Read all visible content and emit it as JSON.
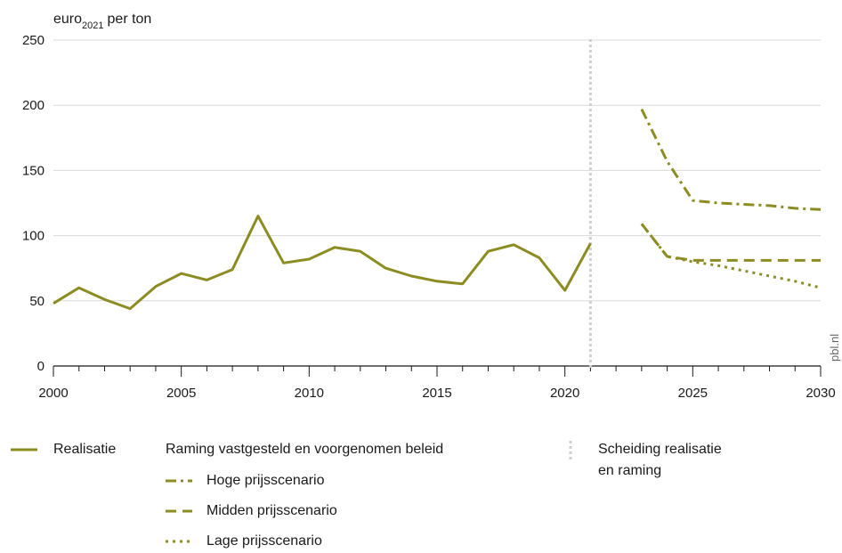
{
  "colors": {
    "series": "#8c8c22",
    "grid": "#d9d9d9",
    "axis": "#1a1a1a",
    "divider": "#cfcfcf"
  },
  "chart_data": {
    "type": "line",
    "ylabel": {
      "main": "euro",
      "sub": "2021",
      "suffix": "per ton"
    },
    "xlim": [
      2000,
      2030
    ],
    "ylim": [
      0,
      250
    ],
    "xticks": [
      2000,
      2005,
      2010,
      2015,
      2020,
      2025,
      2030
    ],
    "yticks": [
      0,
      50,
      100,
      150,
      200,
      250
    ],
    "grid": true,
    "divider_x": 2021,
    "series": [
      {
        "name": "Realisatie",
        "style": "solid",
        "points": [
          [
            2000,
            48
          ],
          [
            2001,
            60
          ],
          [
            2002,
            51
          ],
          [
            2003,
            44
          ],
          [
            2004,
            61
          ],
          [
            2005,
            71
          ],
          [
            2006,
            66
          ],
          [
            2007,
            74
          ],
          [
            2008,
            115
          ],
          [
            2009,
            79
          ],
          [
            2010,
            82
          ],
          [
            2011,
            91
          ],
          [
            2012,
            88
          ],
          [
            2013,
            75
          ],
          [
            2014,
            69
          ],
          [
            2015,
            65
          ],
          [
            2016,
            63
          ],
          [
            2017,
            88
          ],
          [
            2018,
            93
          ],
          [
            2019,
            83
          ],
          [
            2020,
            58
          ],
          [
            2021,
            94
          ]
        ]
      },
      {
        "name": "Hoge prijsscenario",
        "style": "dashdot",
        "points": [
          [
            2023,
            197
          ],
          [
            2024,
            157
          ],
          [
            2025,
            127
          ],
          [
            2026,
            125
          ],
          [
            2027,
            124
          ],
          [
            2028,
            123
          ],
          [
            2029,
            121
          ],
          [
            2030,
            120
          ]
        ]
      },
      {
        "name": "Midden prijsscenario",
        "style": "dashed",
        "points": [
          [
            2023,
            109
          ],
          [
            2024,
            84
          ],
          [
            2025,
            81
          ],
          [
            2026,
            81
          ],
          [
            2027,
            81
          ],
          [
            2028,
            81
          ],
          [
            2029,
            81
          ],
          [
            2030,
            81
          ]
        ]
      },
      {
        "name": "Lage prijsscenario",
        "style": "dotted",
        "points": [
          [
            2023,
            109
          ],
          [
            2024,
            84
          ],
          [
            2025,
            80
          ],
          [
            2026,
            77
          ],
          [
            2027,
            73
          ],
          [
            2028,
            69
          ],
          [
            2029,
            65
          ],
          [
            2030,
            60
          ]
        ]
      }
    ]
  },
  "watermark": "pbl.nl",
  "legend": {
    "realisatie": "Realisatie",
    "raming_title": "Raming vastgesteld en voorgenomen beleid",
    "hoge": "Hoge prijsscenario",
    "midden": "Midden prijsscenario",
    "lage": "Lage prijsscenario",
    "scheiding_line1": "Scheiding realisatie",
    "scheiding_line2": "en raming"
  }
}
